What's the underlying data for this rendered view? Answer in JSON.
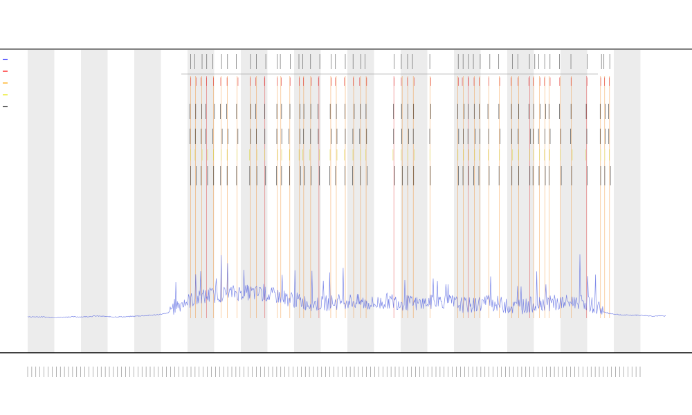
{
  "chart_data": {
    "type": "line",
    "title": "",
    "subtitle_lines": [
      "",
      ""
    ],
    "xlabel": "",
    "ylabel": "",
    "legend": {
      "placement": "top-left",
      "entries": [
        {
          "name": "",
          "color": "#0000ff"
        },
        {
          "name": "",
          "color": "#ff0000"
        },
        {
          "name": "",
          "color": "#ffa500"
        },
        {
          "name": "",
          "color": "#e6e600"
        },
        {
          "name": "",
          "color": "#000000"
        }
      ]
    },
    "colors": {
      "signal": "#4f5fe0",
      "peak_orange": "#f28c28",
      "peak_red": "#e03030",
      "peak_yellow": "#d8d84a",
      "peak_black": "#222222",
      "band": "#ececec",
      "axis": "#000000"
    },
    "grid": false,
    "band_count": 12,
    "xlim": [
      0,
      920
    ],
    "ylim": [
      0,
      100
    ],
    "x": [
      0,
      20,
      40,
      60,
      80,
      100,
      120,
      140,
      160,
      180,
      200,
      220,
      240,
      260,
      280,
      300,
      320,
      340,
      360,
      380,
      400,
      420,
      440,
      460,
      480,
      500,
      520,
      540,
      560,
      580,
      600,
      620,
      640,
      660,
      680,
      700,
      720,
      740,
      760,
      780,
      800,
      820,
      840,
      860,
      880,
      900,
      920
    ],
    "series": [
      {
        "name": "",
        "values": [
          2,
          2,
          1.5,
          2,
          2,
          2.5,
          2,
          2,
          2.5,
          3,
          4,
          8,
          11,
          13,
          14,
          15,
          15,
          14,
          13,
          11,
          9,
          8,
          9,
          10,
          9,
          8,
          10,
          9,
          8,
          9,
          10,
          8,
          7,
          9,
          8,
          6,
          7,
          9,
          8,
          9,
          10,
          6,
          4,
          3,
          3,
          2.5,
          2.5
        ]
      }
    ],
    "peak_positions": [
      235,
      242,
      251,
      258,
      268,
      279,
      288,
      302,
      321,
      330,
      342,
      360,
      365,
      378,
      392,
      398,
      408,
      420,
      437,
      445,
      458,
      470,
      480,
      488,
      528,
      540,
      548,
      556,
      580,
      620,
      628,
      635,
      644,
      652,
      665,
      680,
      698,
      708,
      724,
      730,
      738,
      746,
      752,
      768,
      784,
      806,
      826,
      832,
      839
    ]
  }
}
